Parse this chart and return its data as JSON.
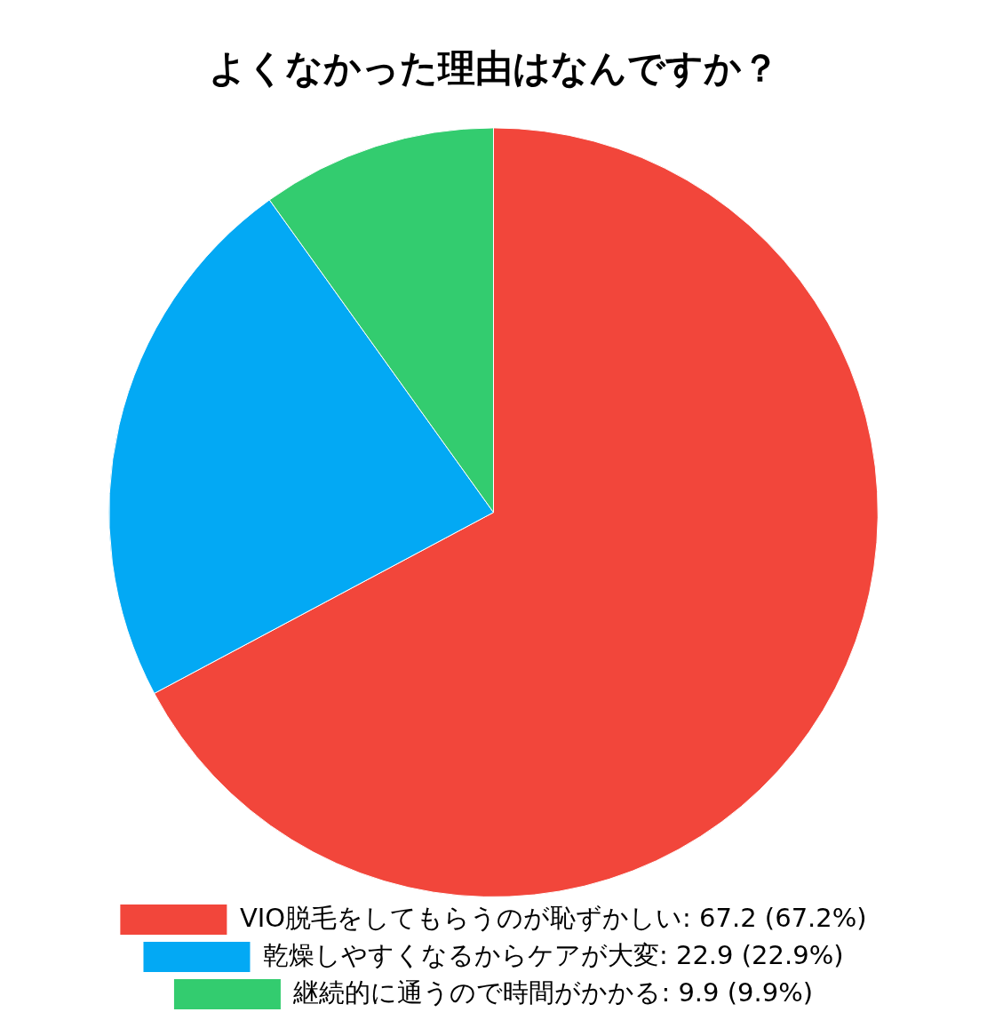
{
  "chart_data": {
    "type": "pie",
    "title": "よくなかった理由はなんですか？",
    "categories": [
      "VIO脱毛をしてもらうのが恥ずかしい",
      "乾燥しやすくなるからケアが大変",
      "継続的に通うので時間がかかる"
    ],
    "values": [
      67.2,
      22.9,
      9.9
    ],
    "value_labels": [
      "67.2 (67.2%)",
      "22.9 (22.9%)",
      "9.9 (9.9%)"
    ],
    "colors": [
      "#f2463b",
      "#03a9f4",
      "#33cc6f"
    ],
    "legend": "bottom"
  }
}
